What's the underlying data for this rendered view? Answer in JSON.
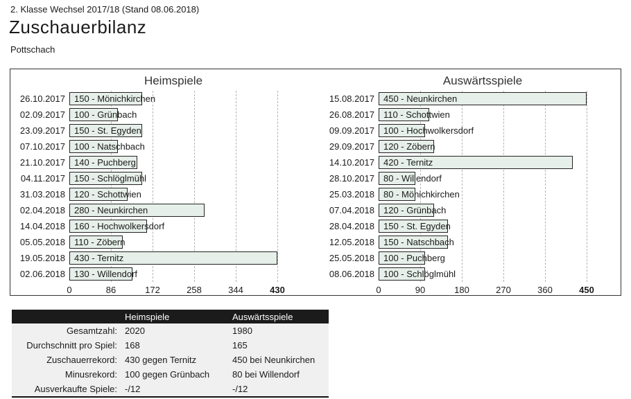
{
  "page": {
    "supertitle": "2. Klasse Wechsel 2017/18 (Stand 08.06.2018)",
    "title": "Zuschauerbilanz",
    "subtitle": "Pottschach"
  },
  "colors": {
    "bar_fill": "#e6efe9",
    "bar_border": "#222222",
    "gridline": "#b3b3b3",
    "table_header_bg": "#1b1b1b",
    "table_body_bg": "#f0f0f0"
  },
  "chart_data": [
    {
      "type": "bar",
      "orientation": "horizontal",
      "title": "Heimspiele",
      "grid": true,
      "xlim": [
        0,
        430
      ],
      "xticks": [
        0,
        86,
        172,
        258,
        344,
        430
      ],
      "categories": [
        "26.10.2017",
        "02.09.2017",
        "23.09.2017",
        "07.10.2017",
        "21.10.2017",
        "04.11.2017",
        "31.03.2018",
        "02.04.2018",
        "14.04.2018",
        "05.05.2018",
        "19.05.2018",
        "02.06.2018"
      ],
      "values": [
        150,
        100,
        150,
        100,
        140,
        150,
        120,
        280,
        160,
        110,
        430,
        130
      ],
      "bar_labels": [
        "150 - Mönichkirchen",
        "100 - Grünbach",
        "150 - St. Egyden",
        "100 - Natschbach",
        "140 - Puchberg",
        "150 - Schlöglmühl",
        "120 - Schottwien",
        "280 - Neunkirchen",
        "160 - Hochwolkersdorf",
        "110 - Zöbern",
        "430 - Ternitz",
        "130 - Willendorf"
      ]
    },
    {
      "type": "bar",
      "orientation": "horizontal",
      "title": "Auswärtsspiele",
      "grid": true,
      "xlim": [
        0,
        450
      ],
      "xticks": [
        0,
        90,
        180,
        270,
        360,
        450
      ],
      "categories": [
        "15.08.2017",
        "26.08.2017",
        "09.09.2017",
        "29.09.2017",
        "14.10.2017",
        "28.10.2017",
        "25.03.2018",
        "07.04.2018",
        "28.04.2018",
        "12.05.2018",
        "25.05.2018",
        "08.06.2018"
      ],
      "values": [
        450,
        110,
        100,
        120,
        420,
        80,
        80,
        120,
        150,
        150,
        100,
        100
      ],
      "bar_labels": [
        "450 - Neunkirchen",
        "110 - Schottwien",
        "100 - Hochwolkersdorf",
        "120 - Zöbern",
        "420 - Ternitz",
        "80 - Willendorf",
        "80 - Mönichkirchen",
        "120 - Grünbach",
        "150 - St. Egyden",
        "150 - Natschbach",
        "100 - Puchberg",
        "100 - Schlöglmühl"
      ]
    }
  ],
  "summary_table": {
    "columns": [
      "",
      "Heimspiele",
      "Auswärtsspiele"
    ],
    "rows": [
      {
        "label": "Gesamtzahl:",
        "heim": "2020",
        "aus": "1980"
      },
      {
        "label": "Durchschnitt pro Spiel:",
        "heim": "168",
        "aus": "165"
      },
      {
        "label": "Zuschauerrekord:",
        "heim": "430 gegen Ternitz",
        "aus": "450 bei Neunkirchen"
      },
      {
        "label": "Minusrekord:",
        "heim": "100 gegen Grünbach",
        "aus": "80 bei Willendorf"
      },
      {
        "label": "Ausverkaufte Spiele:",
        "heim": "-/12",
        "aus": "-/12"
      }
    ]
  }
}
